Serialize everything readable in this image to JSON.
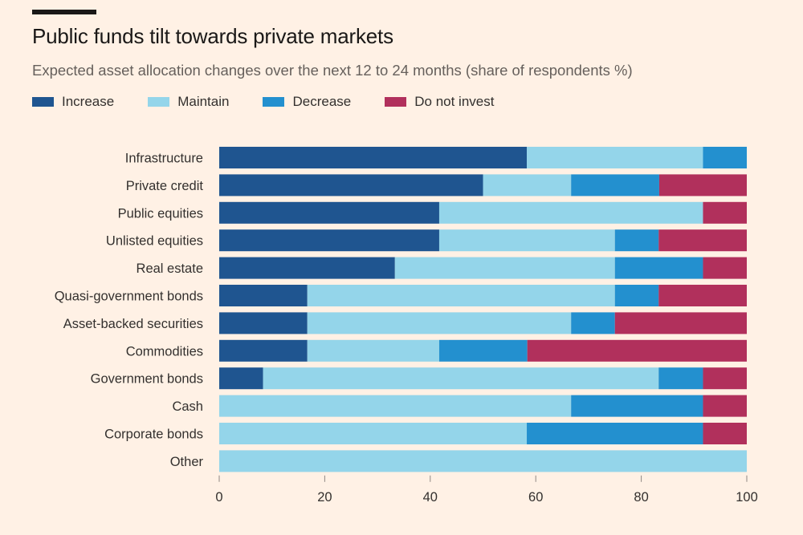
{
  "header": {
    "title": "Public funds tilt towards private markets",
    "subtitle": "Expected asset allocation changes over the next 12 to 24 months (share of respondents %)"
  },
  "colors": {
    "background": "#fff1e5",
    "increase": "#1f5590",
    "maintain": "#94d5ea",
    "decrease": "#2390cf",
    "do_not_invest": "#b1305c",
    "track": "#f5e6da"
  },
  "legend": [
    {
      "label": "Increase",
      "color": "#1f5590"
    },
    {
      "label": "Maintain",
      "color": "#94d5ea"
    },
    {
      "label": "Decrease",
      "color": "#2390cf"
    },
    {
      "label": "Do not invest",
      "color": "#b1305c"
    }
  ],
  "chart_data": {
    "type": "bar",
    "orientation": "horizontal",
    "stacked": true,
    "title": "Public funds tilt towards private markets",
    "subtitle": "Expected asset allocation changes over the next 12 to 24 months (share of respondents %)",
    "categories": [
      "Infrastructure",
      "Private credit",
      "Public equities",
      "Unlisted equities",
      "Real estate",
      "Quasi-government bonds",
      "Asset-backed securities",
      "Commodities",
      "Government bonds",
      "Cash",
      "Corporate bonds",
      "Other"
    ],
    "series": [
      {
        "name": "Increase",
        "color": "#1f5590",
        "values": [
          58.3,
          50.0,
          41.7,
          41.7,
          33.3,
          16.7,
          16.7,
          16.7,
          8.3,
          0,
          0,
          0
        ]
      },
      {
        "name": "Maintain",
        "color": "#94d5ea",
        "values": [
          33.4,
          16.7,
          50.0,
          33.3,
          41.7,
          58.3,
          50.0,
          25.0,
          75.0,
          66.7,
          58.3,
          100
        ]
      },
      {
        "name": "Decrease",
        "color": "#2390cf",
        "values": [
          8.3,
          16.7,
          0,
          8.3,
          16.7,
          8.3,
          8.3,
          16.7,
          8.4,
          25.0,
          33.4,
          0
        ]
      },
      {
        "name": "Do not invest",
        "color": "#b1305c",
        "values": [
          0,
          16.6,
          8.3,
          16.7,
          8.3,
          16.7,
          25.0,
          41.6,
          8.3,
          8.3,
          8.3,
          0
        ]
      }
    ],
    "xlim": [
      0,
      100
    ],
    "xticks": [
      "0",
      "20",
      "40",
      "60",
      "80",
      "100"
    ],
    "xlabel": "",
    "ylabel": "",
    "legend_position": "top-left"
  }
}
